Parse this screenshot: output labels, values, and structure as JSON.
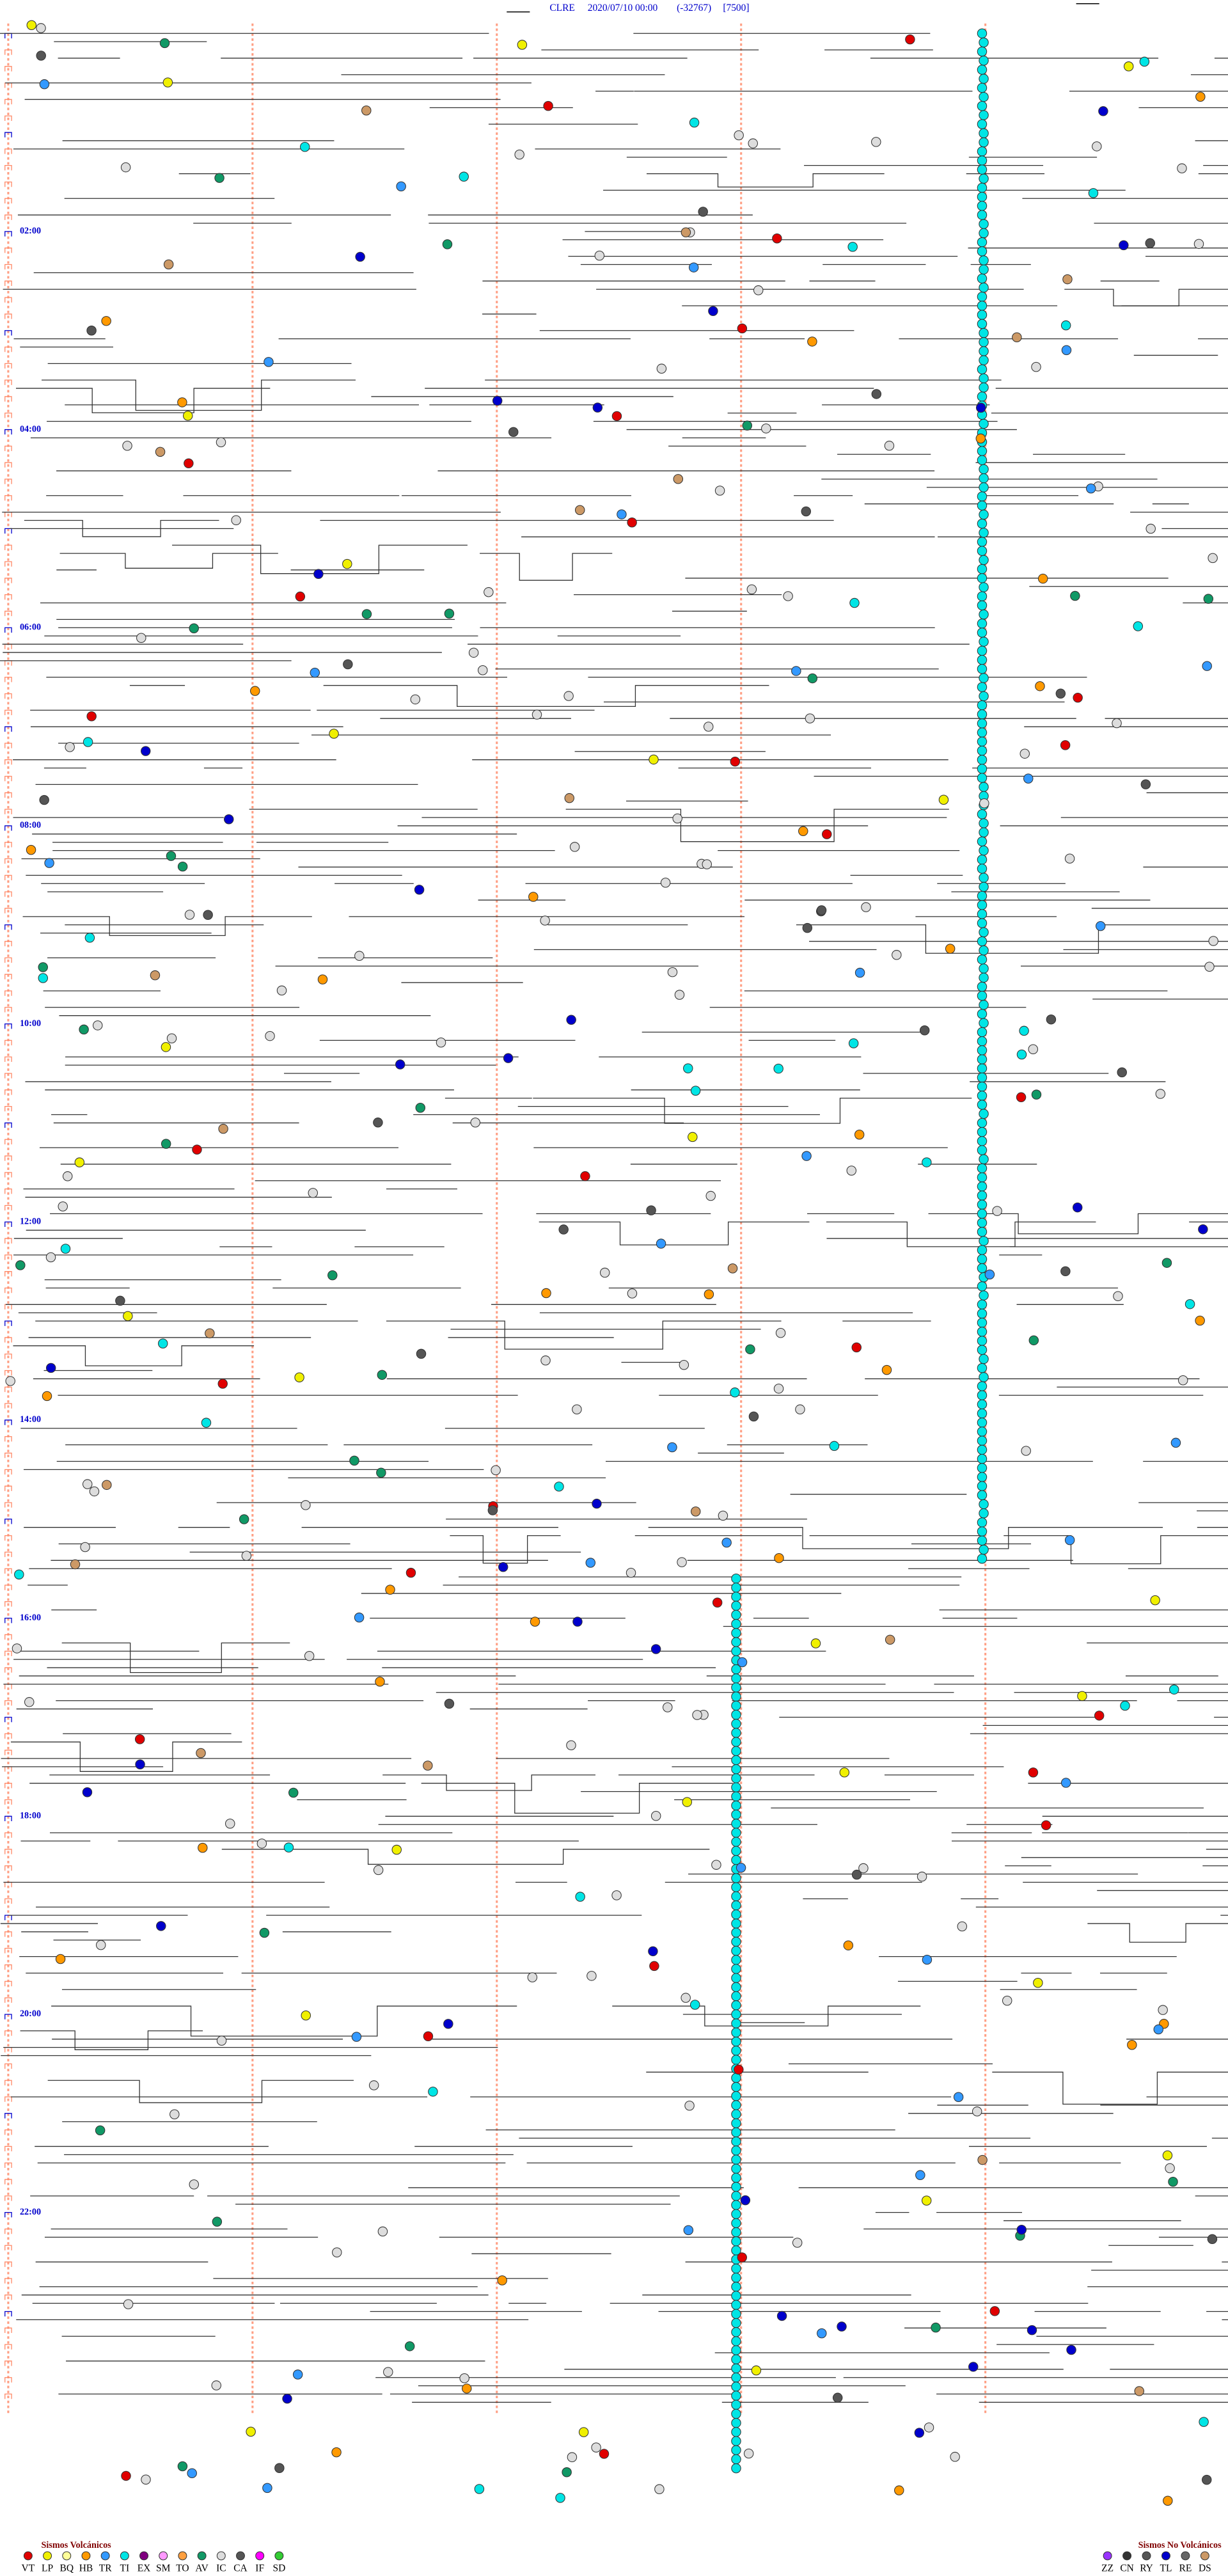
{
  "header": {
    "station": "CLRE",
    "datetime": "2020/07/10 00:00",
    "clip": "(-32767)",
    "scale": "[7500]"
  },
  "time_labels": [
    "02:00",
    "04:00",
    "06:00",
    "08:00",
    "10:00",
    "12:00",
    "14:00",
    "16:00",
    "18:00",
    "20:00",
    "22:00"
  ],
  "legend": {
    "volcanic": {
      "title": "Sismos Volcánicos",
      "items": [
        {
          "code": "VT",
          "color": "#e00000"
        },
        {
          "code": "LP",
          "color": "#f0f000"
        },
        {
          "code": "BQ",
          "color": "#ffff99"
        },
        {
          "code": "HB",
          "color": "#ff9900"
        },
        {
          "code": "TR",
          "color": "#3399ff"
        },
        {
          "code": "TI",
          "color": "#00e5e5"
        },
        {
          "code": "EX",
          "color": "#800080"
        },
        {
          "code": "SM",
          "color": "#ff99ff"
        },
        {
          "code": "TO",
          "color": "#ffa040"
        },
        {
          "code": "AV",
          "color": "#119966"
        },
        {
          "code": "IC",
          "color": "#dddddd"
        },
        {
          "code": "CA",
          "color": "#555555"
        },
        {
          "code": "IF",
          "color": "#ff00ff"
        },
        {
          "code": "SD",
          "color": "#33cc33"
        }
      ]
    },
    "non_volcanic": {
      "title": "Sismos No Volcánicos",
      "items": [
        {
          "code": "ZZ",
          "color": "#9933ff"
        },
        {
          "code": "CN",
          "color": "#333333"
        },
        {
          "code": "RY",
          "color": "#555555"
        },
        {
          "code": "TL",
          "color": "#0000cc"
        },
        {
          "code": "RE",
          "color": "#666666"
        },
        {
          "code": "DS",
          "color": "#cc9966"
        }
      ]
    }
  }
}
